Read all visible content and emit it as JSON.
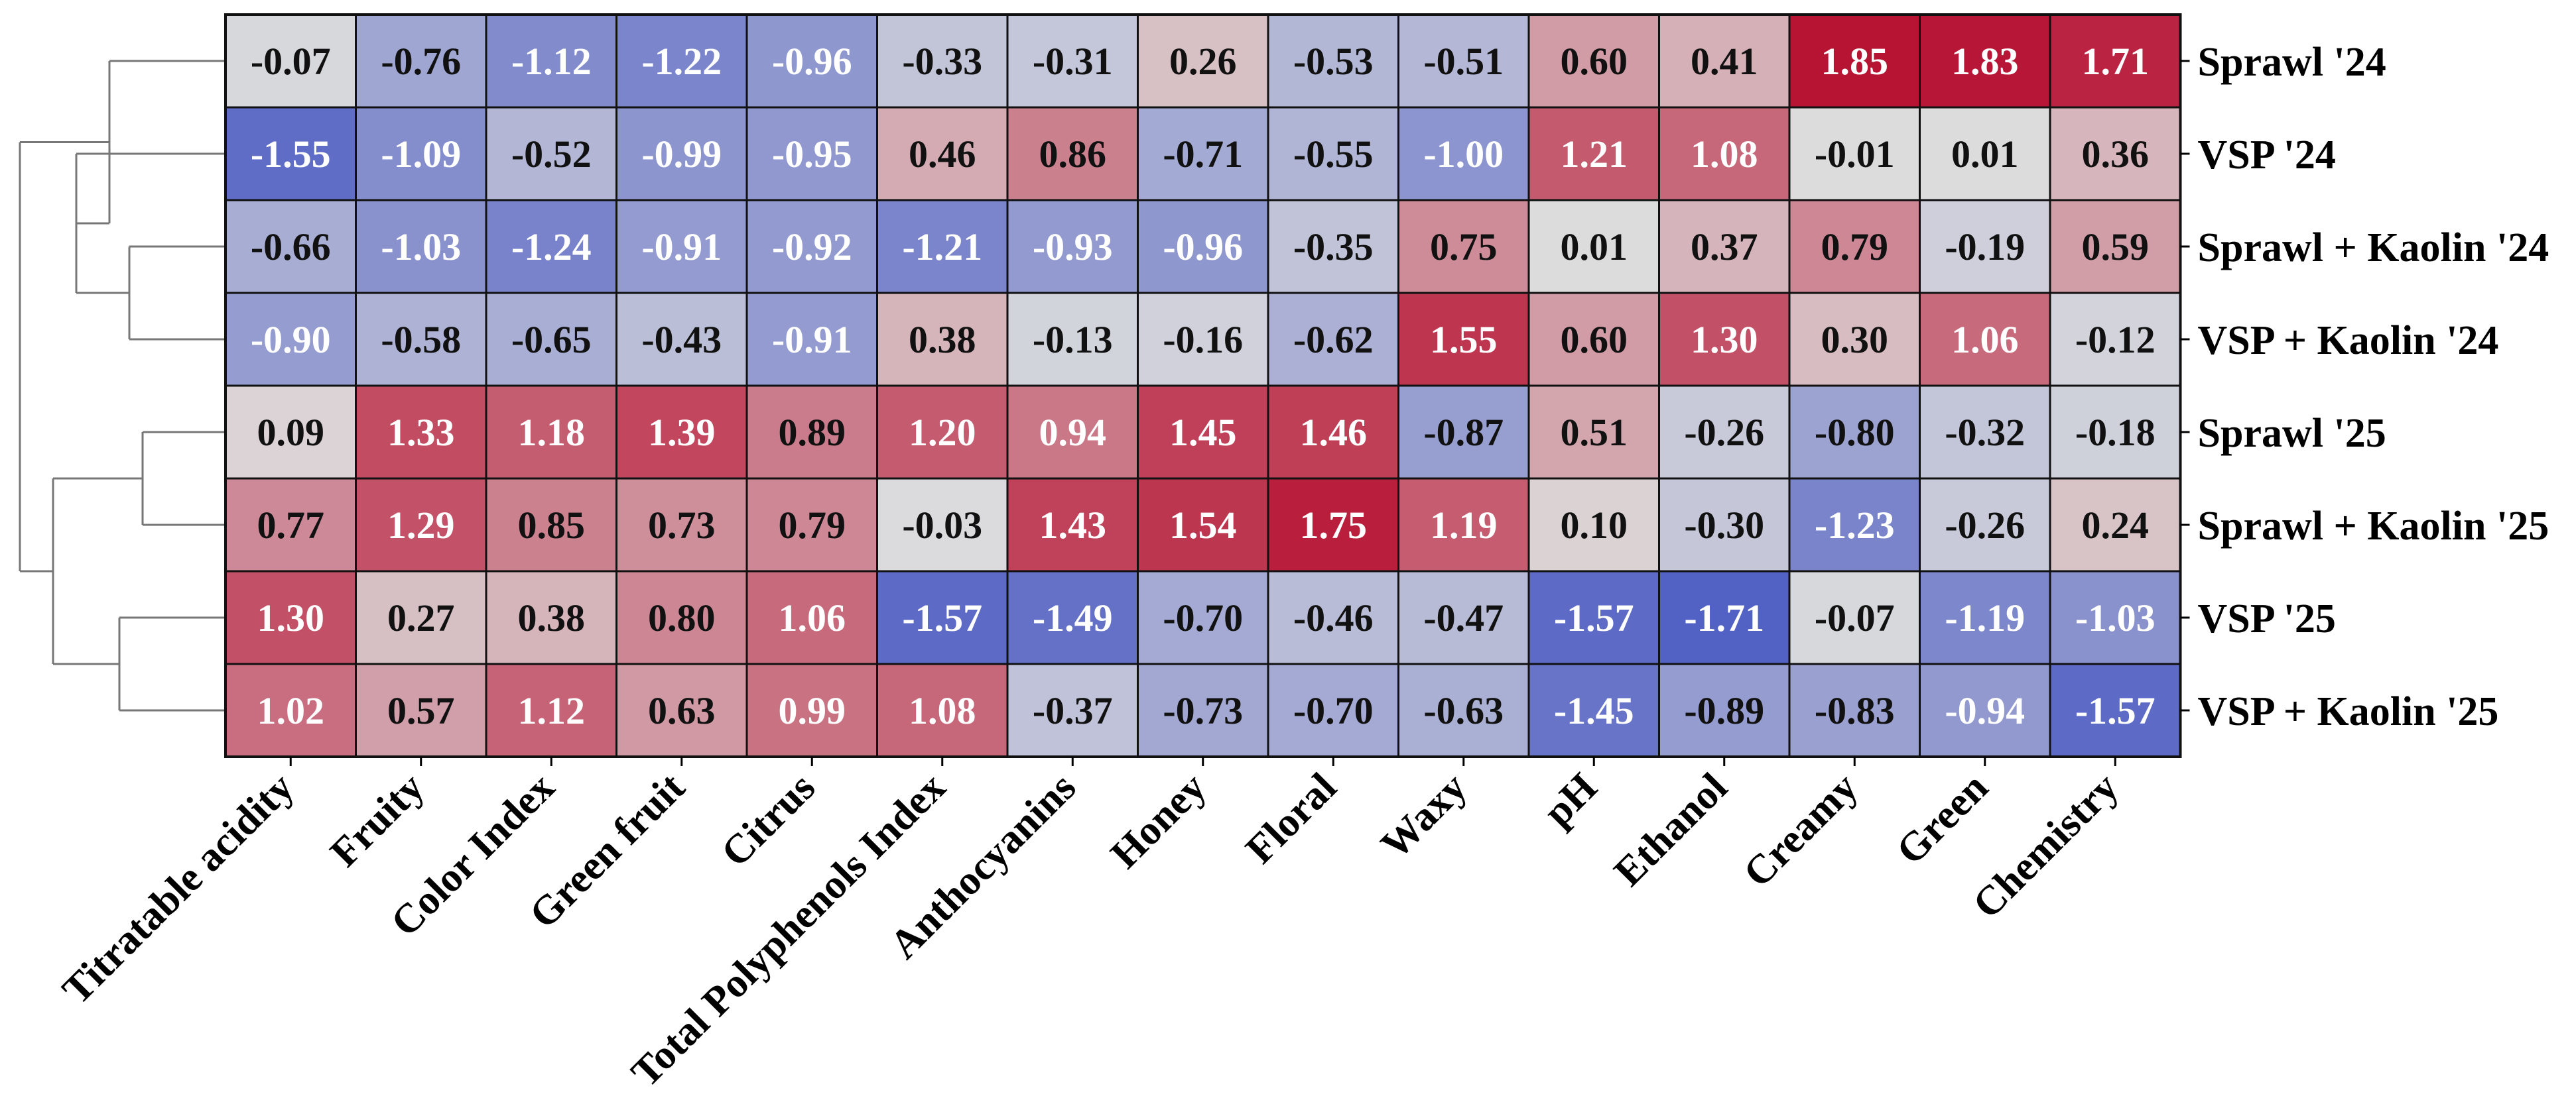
{
  "chart_data": {
    "type": "heatmap",
    "title": "",
    "rows": [
      "Sprawl '24",
      "VSP '24",
      "Sprawl + Kaolin '24",
      "VSP + Kaolin '24",
      "Sprawl '25",
      "Sprawl + Kaolin '25",
      "VSP '25",
      "VSP + Kaolin '25"
    ],
    "columns": [
      "Titratable acidity",
      "Fruity",
      "Color Index",
      "Green fruit",
      "Citrus",
      "Total Polyphenols Index",
      "Anthocyanins",
      "Honey",
      "Floral",
      "Waxy",
      "pH",
      "Ethanol",
      "Creamy",
      "Green",
      "Chemistry"
    ],
    "values": [
      [
        -0.07,
        -0.76,
        -1.12,
        -1.22,
        -0.96,
        -0.33,
        -0.31,
        0.26,
        -0.53,
        -0.51,
        0.6,
        0.41,
        1.85,
        1.83,
        1.71
      ],
      [
        -1.55,
        -1.09,
        -0.52,
        -0.99,
        -0.95,
        0.46,
        0.86,
        -0.71,
        -0.55,
        -1.0,
        1.21,
        1.08,
        -0.01,
        0.01,
        0.36
      ],
      [
        -0.66,
        -1.03,
        -1.24,
        -0.91,
        -0.92,
        -1.21,
        -0.93,
        -0.96,
        -0.35,
        0.75,
        0.01,
        0.37,
        0.79,
        -0.19,
        0.59
      ],
      [
        -0.9,
        -0.58,
        -0.65,
        -0.43,
        -0.91,
        0.38,
        -0.13,
        -0.16,
        -0.62,
        1.55,
        0.6,
        1.3,
        0.3,
        1.06,
        -0.12
      ],
      [
        0.09,
        1.33,
        1.18,
        1.39,
        0.89,
        1.2,
        0.94,
        1.45,
        1.46,
        -0.87,
        0.51,
        -0.26,
        -0.8,
        -0.32,
        -0.18
      ],
      [
        0.77,
        1.29,
        0.85,
        0.73,
        0.79,
        -0.03,
        1.43,
        1.54,
        1.75,
        1.19,
        0.1,
        -0.3,
        -1.23,
        -0.26,
        0.24
      ],
      [
        1.3,
        0.27,
        0.38,
        0.8,
        1.06,
        -1.57,
        -1.49,
        -0.7,
        -0.46,
        -0.47,
        -1.57,
        -1.71,
        -0.07,
        -1.19,
        -1.03
      ],
      [
        1.02,
        0.57,
        1.12,
        0.63,
        0.99,
        1.08,
        -0.37,
        -0.73,
        -0.7,
        -0.63,
        -1.45,
        -0.89,
        -0.83,
        -0.94,
        -1.57
      ]
    ],
    "value_format": "2 decimals",
    "colormap": "coolwarm",
    "color_range": [
      -2,
      2
    ],
    "row_dendrogram": true,
    "dendrogram_side": "left",
    "row_label_side": "right",
    "column_label_rotation_deg": 45
  },
  "colors": {
    "cold": "#3b4cc0",
    "neutral": "#dddddd",
    "hot": "#b40426",
    "grid_line": "#111111",
    "dendrogram_line": "#777777",
    "light_text": "#ffffff",
    "dark_text": "#111111"
  }
}
